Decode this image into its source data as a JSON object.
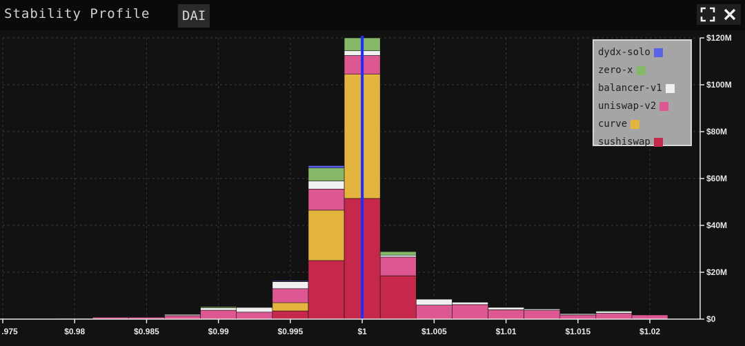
{
  "header": {
    "title": "Stability Profile",
    "asset": "DAI",
    "fullscreen_icon": "expand-icon",
    "close_icon": "close-icon"
  },
  "chart_data": {
    "type": "bar",
    "stacked": true,
    "bin_width": 0.0025,
    "x": [
      0.9775,
      0.98,
      0.9825,
      0.985,
      0.9875,
      0.99,
      0.9925,
      0.995,
      0.9975,
      1.0,
      1.0025,
      1.005,
      1.0075,
      1.01,
      1.0125,
      1.015,
      1.0175,
      1.02
    ],
    "xlim": [
      0.975,
      1.0235
    ],
    "ylim": [
      0,
      120
    ],
    "y_unit": "M",
    "x_ticks": [
      {
        "value": 0.975,
        "label": ".975"
      },
      {
        "value": 0.98,
        "label": "$0.98"
      },
      {
        "value": 0.985,
        "label": "$0.985"
      },
      {
        "value": 0.99,
        "label": "$0.99"
      },
      {
        "value": 0.995,
        "label": "$0.995"
      },
      {
        "value": 1.0,
        "label": "$1"
      },
      {
        "value": 1.005,
        "label": "$1.005"
      },
      {
        "value": 1.01,
        "label": "$1.01"
      },
      {
        "value": 1.015,
        "label": "$1.015"
      },
      {
        "value": 1.02,
        "label": "$1.02"
      }
    ],
    "y_ticks": [
      {
        "value": 0,
        "label": "$0"
      },
      {
        "value": 20,
        "label": "$20M"
      },
      {
        "value": 40,
        "label": "$40M"
      },
      {
        "value": 60,
        "label": "$60M"
      },
      {
        "value": 80,
        "label": "$80M"
      },
      {
        "value": 100,
        "label": "$100M"
      },
      {
        "value": 120,
        "label": "$120M"
      }
    ],
    "peg_line": 1.0,
    "grid": true,
    "legend_position": "top-right",
    "series": [
      {
        "name": "sushiswap",
        "color": "#c5284b",
        "values": [
          0,
          0,
          0,
          0,
          0,
          0,
          0,
          3.5,
          25,
          51.5,
          18.5,
          0,
          0,
          0,
          0,
          0,
          0,
          0
        ]
      },
      {
        "name": "curve",
        "color": "#e3b53f",
        "values": [
          0,
          0,
          0,
          0,
          0,
          0,
          0,
          3.5,
          21.5,
          53,
          0,
          0,
          0,
          0,
          0,
          0,
          0,
          0
        ]
      },
      {
        "name": "uniswap-v2",
        "color": "#dd5792",
        "values": [
          0,
          0.3,
          0.8,
          0.8,
          1.5,
          3.8,
          3,
          6,
          9,
          8,
          8,
          6,
          6.2,
          4,
          3.8,
          1.8,
          2.5,
          1.8
        ]
      },
      {
        "name": "balancer-v1",
        "color": "#f0f0f0",
        "values": [
          0,
          0,
          0.1,
          0.1,
          0.5,
          1,
          2,
          3,
          3.5,
          2,
          0.8,
          2.5,
          1,
          1,
          0.5,
          0.5,
          0.8,
          0.1
        ]
      },
      {
        "name": "zero-x",
        "color": "#86b86a",
        "values": [
          0,
          0,
          0,
          0,
          0.1,
          0.5,
          0.2,
          0.2,
          5.5,
          5.5,
          1.5,
          0,
          0,
          0,
          0,
          0,
          0.3,
          0
        ]
      },
      {
        "name": "dydx-solo",
        "color": "#5a62e6",
        "values": [
          0,
          0,
          0,
          0,
          0,
          0,
          0,
          0.3,
          1,
          0,
          0,
          0,
          0,
          0,
          0,
          0,
          0,
          0
        ]
      }
    ],
    "legend_order": [
      "dydx-solo",
      "zero-x",
      "balancer-v1",
      "uniswap-v2",
      "curve",
      "sushiswap"
    ]
  }
}
